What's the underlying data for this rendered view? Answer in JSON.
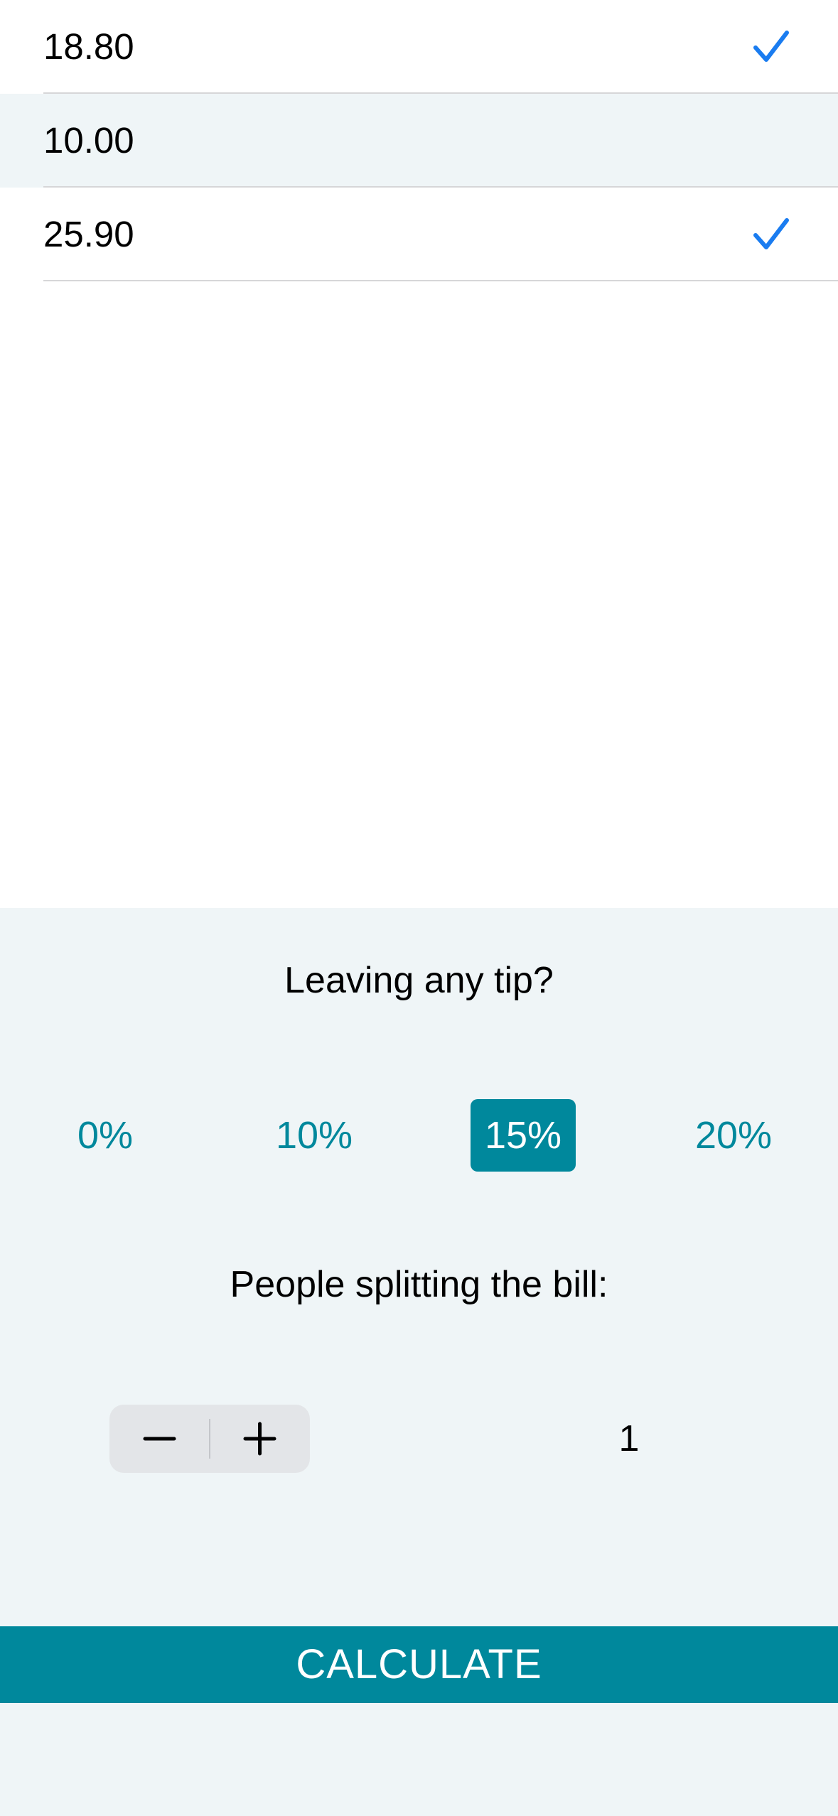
{
  "bills": [
    {
      "value": "18.80",
      "checked": true
    },
    {
      "value": "10.00",
      "checked": false
    },
    {
      "value": "25.90",
      "checked": true
    }
  ],
  "tip": {
    "title": "Leaving any tip?",
    "options": [
      "0%",
      "10%",
      "15%",
      "20%"
    ],
    "selected": "15%"
  },
  "split": {
    "title": "People splitting the bill:",
    "count": "1"
  },
  "calculate_label": "CALCULATE",
  "colors": {
    "accent": "#00889c",
    "check": "#1a7cf0",
    "panel_bg": "#eff5f7"
  },
  "icons": {
    "check": "checkmark-icon",
    "minus": "minus-icon",
    "plus": "plus-icon"
  }
}
